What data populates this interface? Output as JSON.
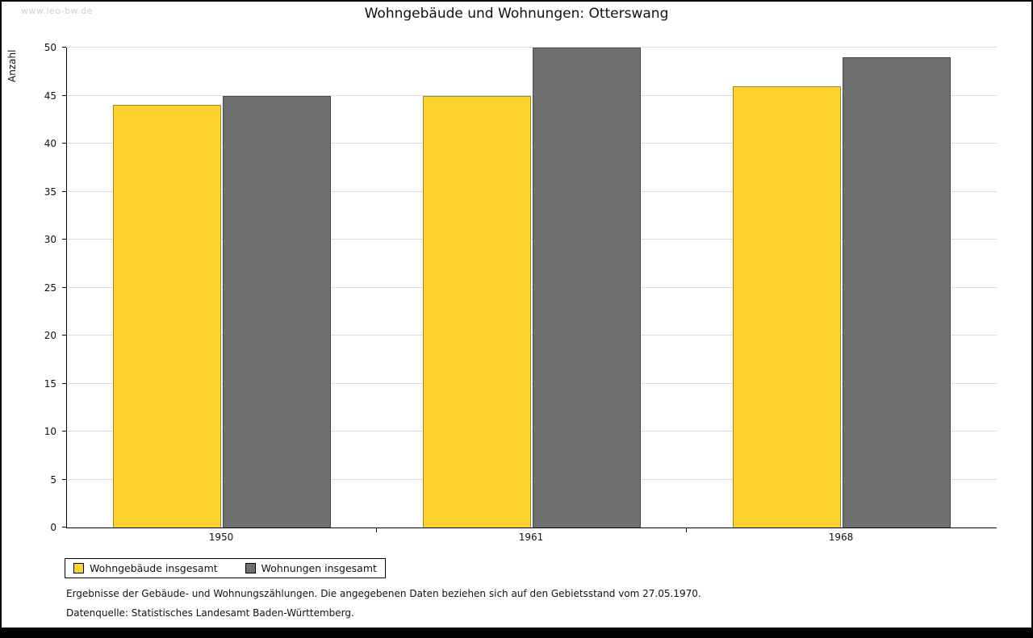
{
  "watermark": "www.leo-bw.de",
  "title": "Wohngebäude und Wohnungen: Otterswang",
  "chart_data": {
    "type": "bar",
    "title": "Wohngebäude und Wohnungen: Otterswang",
    "categories": [
      "1950",
      "1961",
      "1968"
    ],
    "series": [
      {
        "name": "Wohngebäude insgesamt",
        "color": "#fcd32f",
        "values": [
          44,
          45,
          46
        ]
      },
      {
        "name": "Wohnungen insgesamt",
        "color": "#6f6f6f",
        "values": [
          45,
          50,
          49
        ]
      }
    ],
    "xlabel": "",
    "ylabel": "Anzahl",
    "ylim": [
      0,
      50
    ],
    "ytick_step": 5,
    "grid": true,
    "legend_position": "bottom-left"
  },
  "footnotes": {
    "line1": "Ergebnisse der Gebäude- und Wohnungszählungen. Die angegebenen Daten beziehen sich auf den Gebietsstand vom 27.05.1970.",
    "line2": "Datenquelle: Statistisches Landesamt Baden-Württemberg."
  }
}
